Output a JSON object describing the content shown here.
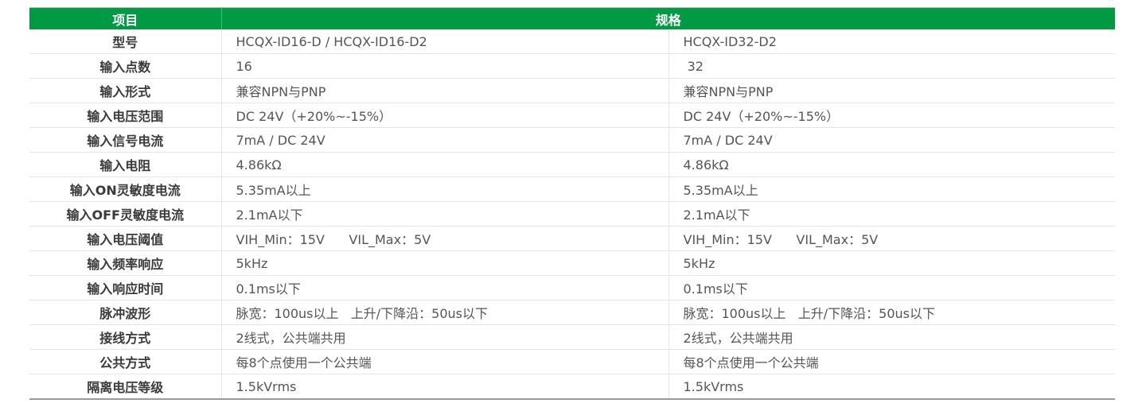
{
  "header": {
    "item": "项目",
    "spec": "规格"
  },
  "rows": [
    {
      "label": "型号",
      "a": "HCQX-ID16-D / HCQX-ID16-D2",
      "b": "HCQX-ID32-D2"
    },
    {
      "label": "输入点数",
      "a": "16",
      "b": " 32"
    },
    {
      "label": "输入形式",
      "a": "兼容NPN与PNP",
      "b": "兼容NPN与PNP"
    },
    {
      "label": "输入电压范围",
      "a": "DC 24V（+20%~-15%）",
      "b": "DC 24V（+20%~-15%）"
    },
    {
      "label": "输入信号电流",
      "a": "7mA / DC 24V",
      "b": "7mA / DC 24V"
    },
    {
      "label": "输入电阻",
      "a": "4.86kΩ",
      "b": "4.86kΩ"
    },
    {
      "label": "输入ON灵敏度电流",
      "a": "5.35mA以上",
      "b": "5.35mA以上"
    },
    {
      "label": "输入OFF灵敏度电流",
      "a": "2.1mA以下",
      "b": "2.1mA以下"
    },
    {
      "label": "输入电压阈值",
      "a": "VIH_Min：15V      VIL_Max：5V",
      "b": "VIH_Min：15V      VIL_Max：5V"
    },
    {
      "label": "输入频率响应",
      "a": "5kHz",
      "b": "5kHz"
    },
    {
      "label": "输入响应时间",
      "a": "0.1ms以下",
      "b": "0.1ms以下"
    },
    {
      "label": "脉冲波形",
      "a": "脉宽：100us以上   上升/下降沿：50us以下",
      "b": "脉宽：100us以上   上升/下降沿：50us以下"
    },
    {
      "label": "接线方式",
      "a": "2线式，公共端共用",
      "b": "2线式，公共端共用"
    },
    {
      "label": "公共方式",
      "a": "每8个点使用一个公共端",
      "b": "每8个点使用一个公共端"
    },
    {
      "label": "隔离电压等级",
      "a": "1.5kVrms",
      "b": "1.5kVrms"
    }
  ],
  "colors": {
    "header_bg": "#009a44",
    "header_text": "#ffffff"
  }
}
